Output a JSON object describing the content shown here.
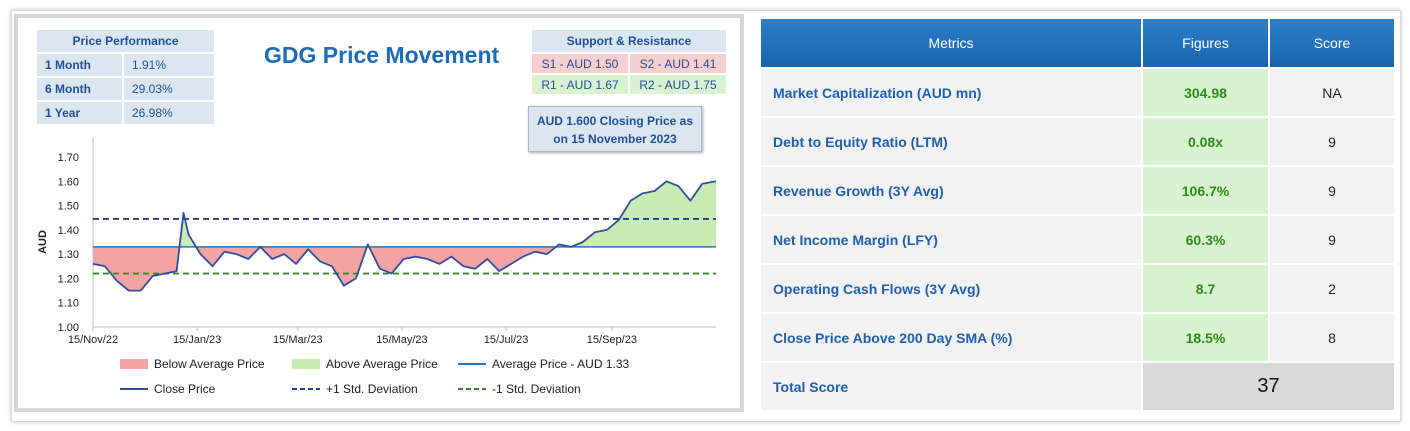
{
  "chart_data": {
    "type": "line",
    "title": "GDG Price Movement",
    "ylabel": "AUD",
    "ylim": [
      1.0,
      1.7
    ],
    "y_ticks": [
      "1.00",
      "1.10",
      "1.20",
      "1.30",
      "1.40",
      "1.50",
      "1.60",
      "1.70"
    ],
    "x_ticks": [
      "15/Nov/22",
      "15/Jan/23",
      "15/Mar/23",
      "15/May/23",
      "15/Jul/23",
      "15/Sep/23"
    ],
    "x_range": [
      "2022-11-15",
      "2023-11-15"
    ],
    "average_price": 1.33,
    "plus_1_std": 1.445,
    "minus_1_std": 1.22,
    "series": [
      {
        "name": "Close Price",
        "x": [
          "2022-11-15",
          "2022-11-22",
          "2022-11-29",
          "2022-12-06",
          "2022-12-13",
          "2022-12-20",
          "2022-12-27",
          "2023-01-03",
          "2023-01-07",
          "2023-01-10",
          "2023-01-17",
          "2023-01-24",
          "2023-01-31",
          "2023-02-07",
          "2023-02-14",
          "2023-02-21",
          "2023-02-28",
          "2023-03-07",
          "2023-03-14",
          "2023-03-21",
          "2023-03-28",
          "2023-04-04",
          "2023-04-11",
          "2023-04-18",
          "2023-04-25",
          "2023-05-02",
          "2023-05-09",
          "2023-05-16",
          "2023-05-23",
          "2023-05-30",
          "2023-06-06",
          "2023-06-13",
          "2023-06-20",
          "2023-06-27",
          "2023-07-04",
          "2023-07-11",
          "2023-07-18",
          "2023-07-25",
          "2023-08-01",
          "2023-08-08",
          "2023-08-15",
          "2023-08-22",
          "2023-08-29",
          "2023-09-05",
          "2023-09-12",
          "2023-09-19",
          "2023-09-26",
          "2023-10-03",
          "2023-10-10",
          "2023-10-17",
          "2023-10-24",
          "2023-10-31",
          "2023-11-07",
          "2023-11-15"
        ],
        "values": [
          1.26,
          1.25,
          1.19,
          1.15,
          1.15,
          1.21,
          1.22,
          1.23,
          1.47,
          1.38,
          1.3,
          1.25,
          1.31,
          1.3,
          1.28,
          1.33,
          1.28,
          1.3,
          1.26,
          1.32,
          1.27,
          1.25,
          1.17,
          1.2,
          1.34,
          1.24,
          1.22,
          1.28,
          1.29,
          1.28,
          1.26,
          1.29,
          1.25,
          1.24,
          1.28,
          1.23,
          1.26,
          1.29,
          1.31,
          1.3,
          1.34,
          1.33,
          1.35,
          1.39,
          1.4,
          1.44,
          1.52,
          1.55,
          1.56,
          1.6,
          1.58,
          1.52,
          1.59,
          1.6
        ]
      }
    ],
    "legend": [
      "Below Average Price",
      "Above Average Price",
      "Average Price - AUD 1.33",
      "Close Price",
      "+1 Std. Deviation",
      "-1 Std. Deviation"
    ],
    "colors": {
      "below": "#f4a3a3",
      "above": "#c9ecb4",
      "line": "#2f4f9e",
      "avg": "#2f6fbf",
      "plus": "#1f3f8f",
      "minus": "#3a8a2a"
    }
  },
  "price_performance": {
    "header": "Price Performance",
    "rows": [
      {
        "label": "1 Month",
        "value": "1.91%"
      },
      {
        "label": "6 Month",
        "value": "29.03%"
      },
      {
        "label": "1 Year",
        "value": "26.98%"
      }
    ]
  },
  "support_resistance": {
    "header": "Support & Resistance",
    "s1": "S1 - AUD 1.50",
    "s2": "S2 - AUD 1.41",
    "r1": "R1 - AUD 1.67",
    "r2": "R2 - AUD 1.75"
  },
  "callout": {
    "line1": "AUD 1.600 Closing Price as",
    "line2": "on 15 November 2023"
  },
  "metrics": {
    "headers": [
      "Metrics",
      "Figures",
      "Score"
    ],
    "rows": [
      {
        "metric": "Market Capitalization (AUD mn)",
        "figure": "304.98",
        "score": "NA"
      },
      {
        "metric": "Debt to Equity Ratio (LTM)",
        "figure": "0.08x",
        "score": "9"
      },
      {
        "metric": "Revenue Growth (3Y Avg)",
        "figure": "106.7%",
        "score": "9"
      },
      {
        "metric": "Net Income Margin (LFY)",
        "figure": "60.3%",
        "score": "9"
      },
      {
        "metric": "Operating Cash Flows (3Y Avg)",
        "figure": "8.7",
        "score": "2"
      },
      {
        "metric": "Close Price Above 200 Day SMA (%)",
        "figure": "18.5%",
        "score": "8"
      }
    ],
    "total_label": "Total Score",
    "total_value": "37"
  }
}
